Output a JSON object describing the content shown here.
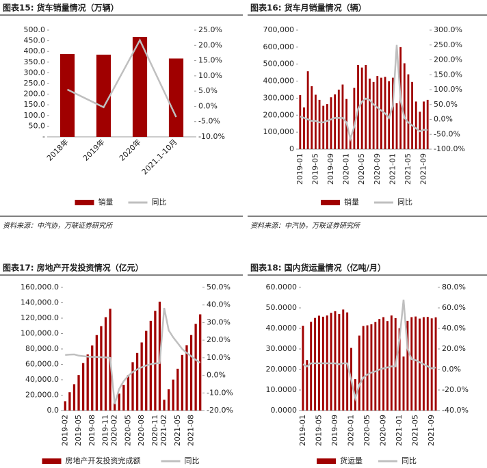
{
  "chart_data": [
    {
      "type": "combo",
      "title": "图表15: 货车销量情况（万辆）",
      "source": "资料来源：中汽协，万联证券研究所",
      "categories": [
        "2018年",
        "2019年",
        "2020年",
        "2021.1-10月"
      ],
      "series": [
        {
          "name": "销量",
          "color": "#a00000",
          "values": [
            388,
            385,
            468,
            367
          ]
        },
        {
          "name": "同比",
          "color": "#bfbfbf",
          "axis": "y2",
          "values": [
            5.5,
            -0.3,
            21.7,
            -3.5
          ]
        }
      ],
      "ylim": [
        0,
        500
      ],
      "yticks": [
        {
          "value": 0,
          "label": "-"
        },
        {
          "value": 50,
          "label": "50.0"
        },
        {
          "value": 100,
          "label": "100.0"
        },
        {
          "value": 150,
          "label": "150.0"
        },
        {
          "value": 200,
          "label": "200.0"
        },
        {
          "value": 250,
          "label": "250.0"
        },
        {
          "value": 300,
          "label": "300.0"
        },
        {
          "value": 350,
          "label": "350.0"
        },
        {
          "value": 400,
          "label": "400.0"
        },
        {
          "value": 450,
          "label": "450.0"
        },
        {
          "value": 500,
          "label": "500.0"
        }
      ],
      "y2lim": [
        -10,
        25
      ],
      "y2ticks": [
        {
          "value": -10,
          "label": "-10.0%"
        },
        {
          "value": -5,
          "label": "-5.0%"
        },
        {
          "value": 0,
          "label": "0.0%"
        },
        {
          "value": 5,
          "label": "5.0%"
        },
        {
          "value": 10,
          "label": "10.0%"
        },
        {
          "value": 15,
          "label": "15.0%"
        },
        {
          "value": 20,
          "label": "20.0%"
        },
        {
          "value": 25,
          "label": "25.0%"
        }
      ]
    },
    {
      "type": "combo",
      "title": "图表16: 货车月销量情况（辆）",
      "source": "资料来源：中汽协，万联证券研究所",
      "categories": [
        "2019-01",
        null,
        null,
        null,
        "2019-05",
        null,
        null,
        null,
        "2019-09",
        null,
        null,
        null,
        "2020-01",
        null,
        null,
        null,
        "2020-05",
        null,
        null,
        null,
        "2020-09",
        null,
        null,
        null,
        "2021-01",
        null,
        null,
        null,
        "2021-05",
        null,
        null,
        null,
        "2021-09",
        null
      ],
      "series": [
        {
          "name": "销量",
          "color": "#a00000",
          "values": [
            318000,
            245000,
            458000,
            370000,
            320000,
            290000,
            255000,
            265000,
            305000,
            322000,
            350000,
            380000,
            295000,
            80000,
            360000,
            495000,
            480000,
            495000,
            415000,
            395000,
            430000,
            420000,
            425000,
            400000,
            420000,
            270000,
            600000,
            505000,
            440000,
            395000,
            280000,
            220000,
            280000,
            290000
          ]
        },
        {
          "name": "同比",
          "color": "#bfbfbf",
          "axis": "y2",
          "values": [
            10,
            5,
            0,
            -5,
            -5,
            -10,
            -10,
            -5,
            0,
            5,
            5,
            5,
            -10,
            -65,
            -25,
            35,
            60,
            70,
            65,
            50,
            40,
            30,
            20,
            5,
            45,
            250,
            65,
            5,
            -10,
            -20,
            -30,
            -40,
            -35,
            -35
          ]
        }
      ],
      "ylim": [
        0,
        700000
      ],
      "yticks": [
        0,
        {
          "value": 100000,
          "label": "100,000"
        },
        {
          "value": 200000,
          "label": "200,000"
        },
        {
          "value": 300000,
          "label": "300,000"
        },
        {
          "value": 400000,
          "label": "400,000"
        },
        {
          "value": 500000,
          "label": "500,000"
        },
        {
          "value": 600000,
          "label": "600,000"
        },
        {
          "value": 700000,
          "label": "700,000"
        }
      ],
      "y2lim": [
        -100,
        300
      ],
      "y2ticks": [
        {
          "value": -100,
          "label": "-100.0%"
        },
        {
          "value": -50,
          "label": "-50.0%"
        },
        {
          "value": 0,
          "label": "0.0%"
        },
        {
          "value": 50,
          "label": "50.0%"
        },
        {
          "value": 100,
          "label": "100.0%"
        },
        {
          "value": 150,
          "label": "150.0%"
        },
        {
          "value": 200,
          "label": "200.0%"
        },
        {
          "value": 250,
          "label": "250.0%"
        },
        {
          "value": 300,
          "label": "300.0%"
        }
      ]
    },
    {
      "type": "combo",
      "title": "图表17: 房地产开发投资情况（亿元）",
      "categories": [
        "2019-02",
        null,
        null,
        "2019-05",
        null,
        null,
        "2019-08",
        null,
        null,
        "2019-11",
        null,
        "2020-02",
        null,
        null,
        "2020-05",
        null,
        null,
        "2020-08",
        null,
        null,
        "2020-11",
        null,
        "2021-02",
        null,
        null,
        "2021-05",
        null,
        null,
        "2021-08",
        null,
        null
      ],
      "series": [
        {
          "name": "房地产开发投资完成额",
          "color": "#a00000",
          "values": [
            12090,
            23800,
            34217,
            46075,
            61609,
            72843,
            84589,
            98008,
            109603,
            121265,
            132194,
            10115,
            21963,
            33103,
            45920,
            62780,
            74820,
            88454,
            103484,
            116556,
            129492,
            141443,
            13986,
            27576,
            40240,
            54318,
            72179,
            84895,
            98060,
            112568,
            124934
          ]
        },
        {
          "name": "同比",
          "color": "#bfbfbf",
          "axis": "y2",
          "values": [
            11.6,
            11.8,
            11.9,
            11.2,
            10.9,
            10.6,
            10.5,
            10.5,
            10.3,
            10.2,
            9.9,
            -16.3,
            -7.7,
            -3.3,
            -0.3,
            1.9,
            3.4,
            4.6,
            5.6,
            6.3,
            6.8,
            7.0,
            38.3,
            25.6,
            21.6,
            18.3,
            15.0,
            12.7,
            10.9,
            8.8,
            7.2
          ]
        }
      ],
      "ylim": [
        0,
        160000
      ],
      "yticks": [
        {
          "value": 0,
          "label": "0.0"
        },
        {
          "value": 20000,
          "label": "20,000.0"
        },
        {
          "value": 40000,
          "label": "40,000.0"
        },
        {
          "value": 60000,
          "label": "60,000.0"
        },
        {
          "value": 80000,
          "label": "80,000.0"
        },
        {
          "value": 100000,
          "label": "100,000.0"
        },
        {
          "value": 120000,
          "label": "120,000.0"
        },
        {
          "value": 140000,
          "label": "140,000.0"
        },
        {
          "value": 160000,
          "label": "160,000.0"
        }
      ],
      "y2lim": [
        -20,
        50
      ],
      "y2ticks": [
        {
          "value": -20,
          "label": "-20.0%"
        },
        {
          "value": -10,
          "label": "-10.0%"
        },
        {
          "value": 0,
          "label": "0.0%"
        },
        {
          "value": 10,
          "label": "10.0%"
        },
        {
          "value": 20,
          "label": "20.0%"
        },
        {
          "value": 30,
          "label": "30.0%"
        },
        {
          "value": 40,
          "label": "40.0%"
        },
        {
          "value": 50,
          "label": "50.0%"
        }
      ]
    },
    {
      "type": "combo",
      "title": "图表18: 国内货运量情况（亿吨/月）",
      "categories": [
        "2019-01",
        null,
        null,
        null,
        "2019-05",
        null,
        null,
        null,
        "2019-09",
        null,
        null,
        null,
        "2020-01",
        null,
        null,
        null,
        "2020-05",
        null,
        null,
        null,
        "2020-09",
        null,
        null,
        null,
        "2021-01",
        null,
        null,
        null,
        "2021-05",
        null,
        null,
        null,
        "2021-09",
        null
      ],
      "series": [
        {
          "name": "货运量",
          "color": "#a00000",
          "values": [
            41.3,
            24.6,
            43.2,
            45.1,
            46.2,
            45.7,
            46.3,
            47.6,
            48.4,
            47.0,
            49.2,
            47.8,
            30.5,
            15.3,
            36.5,
            41.2,
            41.5,
            42.0,
            43.1,
            44.6,
            45.5,
            43.6,
            46.3,
            45.0,
            40.1,
            26.3,
            43.7,
            45.5,
            45.8,
            44.8,
            45.5,
            45.6,
            44.9,
            45.4
          ]
        },
        {
          "name": "同比",
          "color": "#bfbfbf",
          "axis": "y2",
          "values": [
            5,
            3,
            6,
            6,
            6,
            6,
            6,
            6,
            6,
            5,
            6,
            6,
            -10,
            -28,
            -15,
            -8,
            -5,
            -3,
            -2,
            0,
            1,
            2,
            3,
            3,
            30,
            68,
            20,
            10,
            9,
            7,
            5,
            3,
            1,
            2
          ]
        }
      ],
      "ylim": [
        0,
        60
      ],
      "yticks": [
        {
          "value": 0,
          "label": "0.0000"
        },
        {
          "value": 10,
          "label": "10.0000"
        },
        {
          "value": 20,
          "label": "20.0000"
        },
        {
          "value": 30,
          "label": "30.0000"
        },
        {
          "value": 40,
          "label": "40.0000"
        },
        {
          "value": 50,
          "label": "50.0000"
        },
        {
          "value": 60,
          "label": "60.0000"
        }
      ],
      "y2lim": [
        -40,
        80
      ],
      "y2ticks": [
        {
          "value": -40,
          "label": "-40.0%"
        },
        {
          "value": -20,
          "label": "-20.0%"
        },
        {
          "value": 0,
          "label": "0.0%"
        },
        {
          "value": 20,
          "label": "20.0%"
        },
        {
          "value": 40,
          "label": "40.0%"
        },
        {
          "value": 60,
          "label": "60.0%"
        },
        {
          "value": 80,
          "label": "80.0%"
        }
      ]
    }
  ]
}
